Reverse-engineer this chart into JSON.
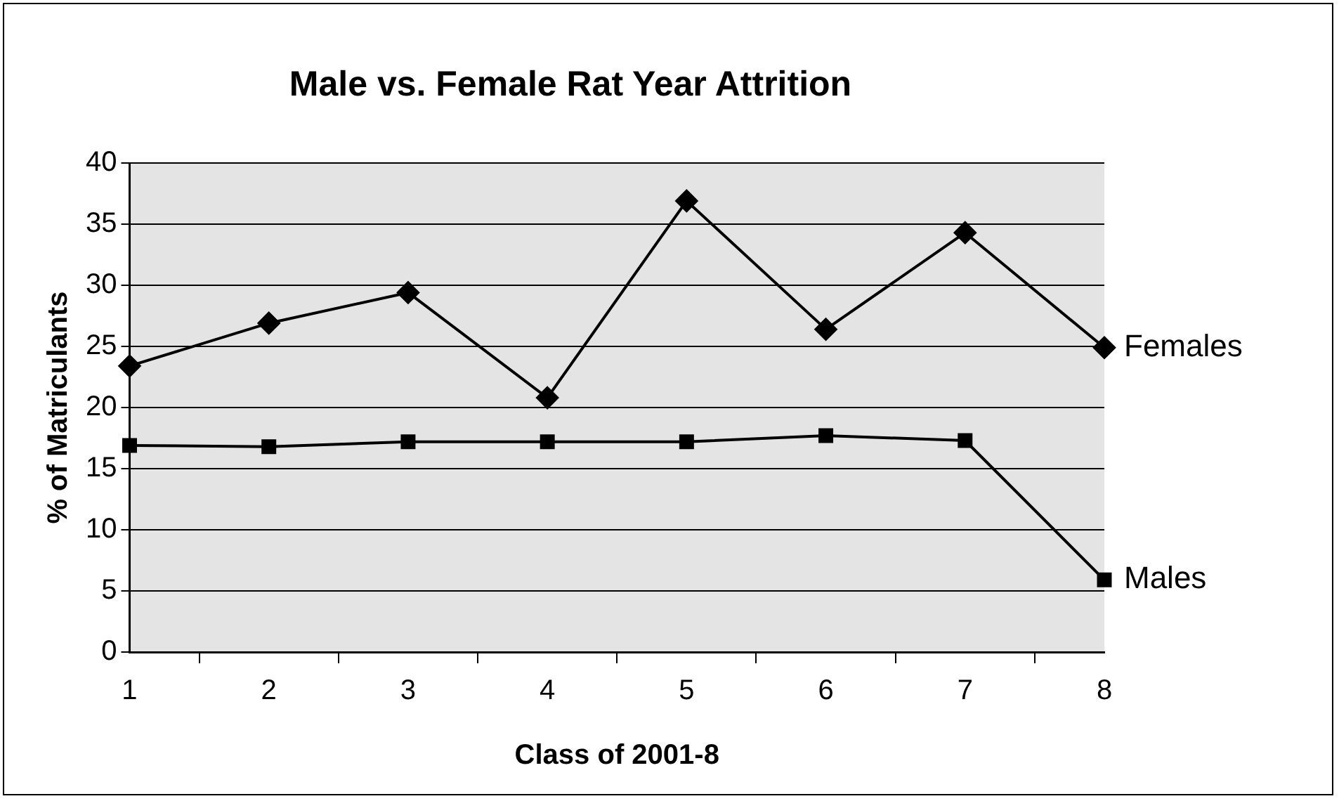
{
  "chart_data": {
    "type": "line",
    "title": "Male vs. Female Rat Year Attrition",
    "xlabel": "Class of 2001-8",
    "ylabel": "% of Matriculants",
    "categories": [
      "1",
      "2",
      "3",
      "4",
      "5",
      "6",
      "7",
      "8"
    ],
    "series": [
      {
        "name": "Females",
        "color": "#000000",
        "marker": "diamond",
        "values": [
          23.4,
          26.9,
          29.4,
          20.8,
          36.9,
          26.4,
          34.3,
          24.9
        ]
      },
      {
        "name": "Males",
        "color": "#000000",
        "marker": "square",
        "values": [
          16.9,
          16.8,
          17.2,
          17.2,
          17.2,
          17.7,
          17.3,
          5.9
        ]
      }
    ],
    "ylim": [
      0,
      40
    ],
    "yticks": [
      0,
      5,
      10,
      15,
      20,
      25,
      30,
      35,
      40
    ],
    "grid": "y",
    "legend": false,
    "line_style": "solid"
  }
}
